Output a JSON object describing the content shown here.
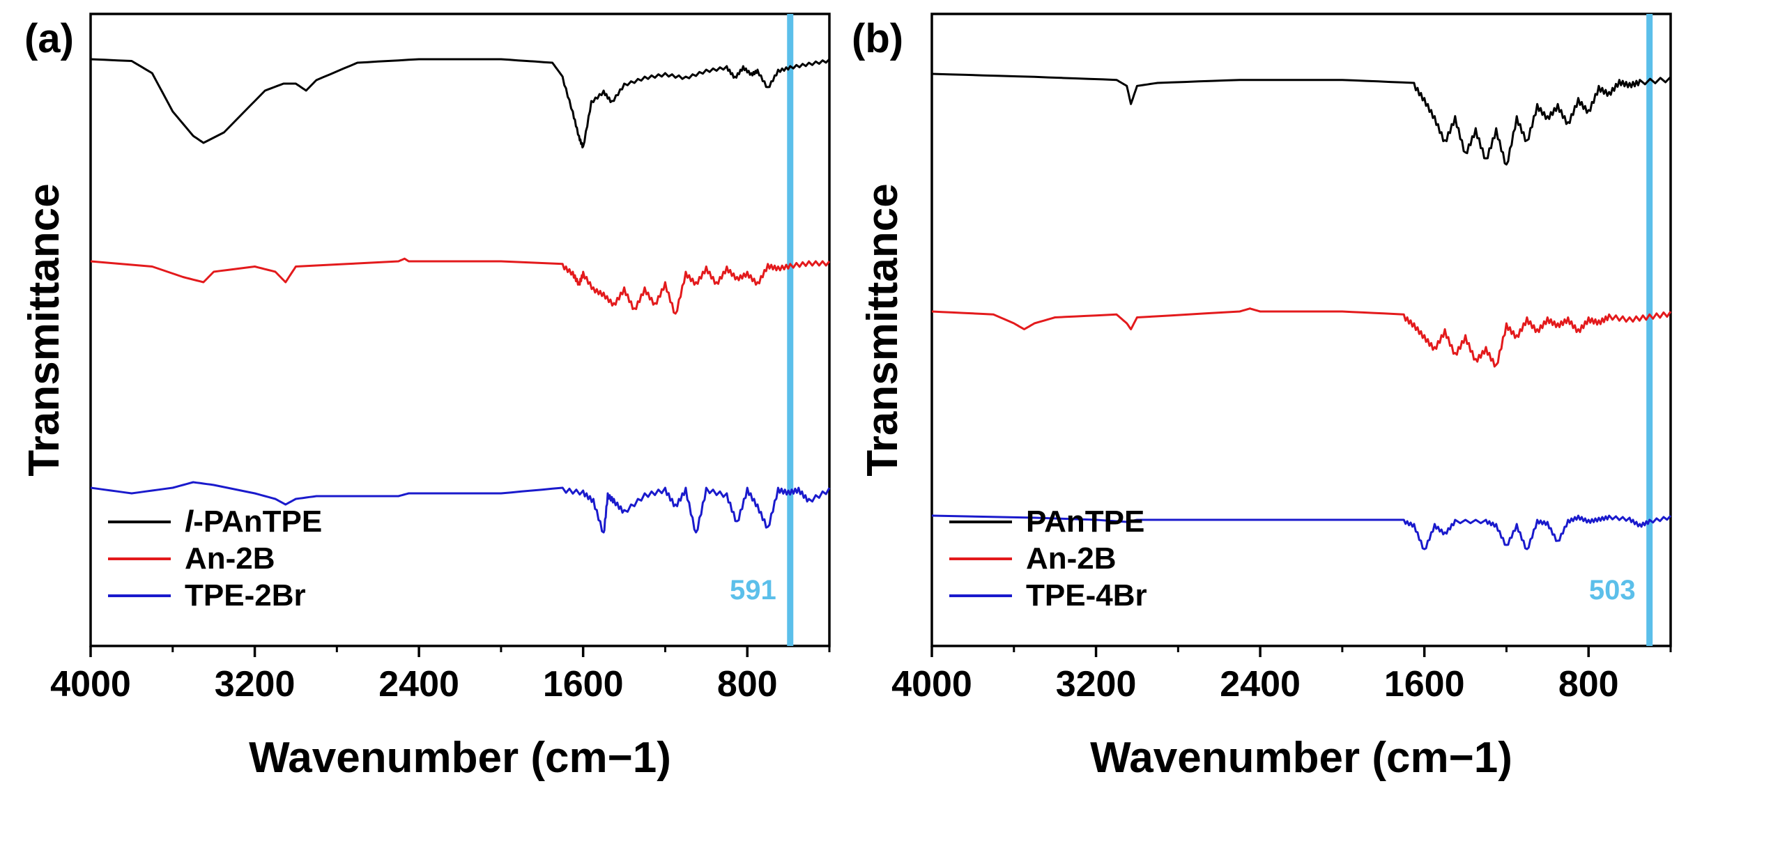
{
  "chart_data": [
    {
      "type": "line",
      "panel_label": "(a)",
      "xlabel": "Wavenumber (cm−1)",
      "ylabel": "Transmittance",
      "xlim": [
        4000,
        400
      ],
      "x_reversed": true,
      "x_ticks": [
        4000,
        3200,
        2400,
        1600,
        800
      ],
      "x_tick_labels": [
        "4000",
        "3200",
        "2400",
        "1600",
        "800"
      ],
      "y_ticks_shown": false,
      "legend_position": "bottom-left",
      "marker_line": {
        "x": 591,
        "label": "591",
        "color": "#5bbfea"
      },
      "series": [
        {
          "name": "l-PAnTPE",
          "legend_prefix": "l",
          "legend_suffix": "-PAnTPE",
          "color": "#000000",
          "points": [
            [
              4000,
              0.97
            ],
            [
              3800,
              0.965
            ],
            [
              3700,
              0.93
            ],
            [
              3600,
              0.82
            ],
            [
              3500,
              0.75
            ],
            [
              3450,
              0.73
            ],
            [
              3350,
              0.76
            ],
            [
              3250,
              0.82
            ],
            [
              3150,
              0.88
            ],
            [
              3060,
              0.9
            ],
            [
              3000,
              0.9
            ],
            [
              2950,
              0.88
            ],
            [
              2900,
              0.91
            ],
            [
              2700,
              0.96
            ],
            [
              2400,
              0.97
            ],
            [
              2000,
              0.97
            ],
            [
              1750,
              0.96
            ],
            [
              1700,
              0.92
            ],
            [
              1650,
              0.82
            ],
            [
              1620,
              0.75
            ],
            [
              1600,
              0.72
            ],
            [
              1560,
              0.85
            ],
            [
              1500,
              0.88
            ],
            [
              1460,
              0.85
            ],
            [
              1400,
              0.9
            ],
            [
              1300,
              0.92
            ],
            [
              1200,
              0.93
            ],
            [
              1100,
              0.92
            ],
            [
              1000,
              0.94
            ],
            [
              900,
              0.95
            ],
            [
              860,
              0.92
            ],
            [
              820,
              0.95
            ],
            [
              780,
              0.93
            ],
            [
              750,
              0.94
            ],
            [
              700,
              0.89
            ],
            [
              650,
              0.94
            ],
            [
              591,
              0.95
            ],
            [
              500,
              0.96
            ],
            [
              400,
              0.97
            ]
          ]
        },
        {
          "name": "An-2B",
          "legend_prefix": "",
          "legend_suffix": "An-2B",
          "color": "#e31a1c",
          "points": [
            [
              4000,
              0.88
            ],
            [
              3700,
              0.87
            ],
            [
              3550,
              0.85
            ],
            [
              3450,
              0.84
            ],
            [
              3400,
              0.86
            ],
            [
              3200,
              0.87
            ],
            [
              3100,
              0.86
            ],
            [
              3050,
              0.84
            ],
            [
              3000,
              0.87
            ],
            [
              2500,
              0.88
            ],
            [
              2470,
              0.885
            ],
            [
              2450,
              0.88
            ],
            [
              2000,
              0.88
            ],
            [
              1700,
              0.875
            ],
            [
              1650,
              0.86
            ],
            [
              1620,
              0.84
            ],
            [
              1600,
              0.86
            ],
            [
              1550,
              0.83
            ],
            [
              1500,
              0.82
            ],
            [
              1450,
              0.8
            ],
            [
              1400,
              0.83
            ],
            [
              1350,
              0.79
            ],
            [
              1300,
              0.83
            ],
            [
              1250,
              0.8
            ],
            [
              1200,
              0.84
            ],
            [
              1150,
              0.78
            ],
            [
              1100,
              0.86
            ],
            [
              1050,
              0.84
            ],
            [
              1000,
              0.87
            ],
            [
              950,
              0.84
            ],
            [
              900,
              0.87
            ],
            [
              850,
              0.85
            ],
            [
              800,
              0.86
            ],
            [
              750,
              0.84
            ],
            [
              700,
              0.875
            ],
            [
              650,
              0.87
            ],
            [
              591,
              0.875
            ],
            [
              500,
              0.88
            ],
            [
              400,
              0.88
            ]
          ]
        },
        {
          "name": "TPE-2Br",
          "legend_prefix": "",
          "legend_suffix": "TPE-2Br",
          "color": "#1a1acc",
          "points": [
            [
              4000,
              0.8
            ],
            [
              3800,
              0.79
            ],
            [
              3600,
              0.8
            ],
            [
              3500,
              0.81
            ],
            [
              3400,
              0.805
            ],
            [
              3200,
              0.79
            ],
            [
              3100,
              0.78
            ],
            [
              3050,
              0.77
            ],
            [
              3000,
              0.78
            ],
            [
              2900,
              0.785
            ],
            [
              2500,
              0.785
            ],
            [
              2450,
              0.79
            ],
            [
              2000,
              0.79
            ],
            [
              1700,
              0.8
            ],
            [
              1600,
              0.795
            ],
            [
              1550,
              0.78
            ],
            [
              1500,
              0.72
            ],
            [
              1480,
              0.79
            ],
            [
              1450,
              0.78
            ],
            [
              1400,
              0.76
            ],
            [
              1300,
              0.79
            ],
            [
              1200,
              0.8
            ],
            [
              1150,
              0.77
            ],
            [
              1100,
              0.8
            ],
            [
              1050,
              0.72
            ],
            [
              1000,
              0.8
            ],
            [
              900,
              0.79
            ],
            [
              850,
              0.74
            ],
            [
              800,
              0.8
            ],
            [
              750,
              0.77
            ],
            [
              700,
              0.73
            ],
            [
              650,
              0.8
            ],
            [
              600,
              0.795
            ],
            [
              550,
              0.8
            ],
            [
              500,
              0.78
            ],
            [
              400,
              0.8
            ]
          ]
        }
      ]
    },
    {
      "type": "line",
      "panel_label": "(b)",
      "xlabel": "Wavenumber (cm−1)",
      "ylabel": "Transmittance",
      "xlim": [
        4000,
        400
      ],
      "x_reversed": true,
      "x_ticks": [
        4000,
        3200,
        2400,
        1600,
        800
      ],
      "x_tick_labels": [
        "4000",
        "3200",
        "2400",
        "1600",
        "800"
      ],
      "y_ticks_shown": false,
      "legend_position": "bottom-left",
      "marker_line": {
        "x": 503,
        "label": "503",
        "color": "#5bbfea"
      },
      "series": [
        {
          "name": "PAnTPE",
          "legend_prefix": "",
          "legend_suffix": "PAnTPE",
          "color": "#000000",
          "points": [
            [
              4000,
              0.97
            ],
            [
              3500,
              0.965
            ],
            [
              3100,
              0.96
            ],
            [
              3050,
              0.95
            ],
            [
              3030,
              0.92
            ],
            [
              3000,
              0.95
            ],
            [
              2900,
              0.955
            ],
            [
              2500,
              0.96
            ],
            [
              2000,
              0.96
            ],
            [
              1650,
              0.955
            ],
            [
              1600,
              0.93
            ],
            [
              1550,
              0.9
            ],
            [
              1500,
              0.86
            ],
            [
              1450,
              0.9
            ],
            [
              1400,
              0.84
            ],
            [
              1350,
              0.88
            ],
            [
              1300,
              0.83
            ],
            [
              1250,
              0.88
            ],
            [
              1200,
              0.82
            ],
            [
              1150,
              0.9
            ],
            [
              1100,
              0.86
            ],
            [
              1050,
              0.92
            ],
            [
              1000,
              0.9
            ],
            [
              950,
              0.92
            ],
            [
              900,
              0.89
            ],
            [
              850,
              0.93
            ],
            [
              800,
              0.91
            ],
            [
              750,
              0.95
            ],
            [
              700,
              0.94
            ],
            [
              650,
              0.96
            ],
            [
              600,
              0.955
            ],
            [
              550,
              0.96
            ],
            [
              400,
              0.965
            ]
          ]
        },
        {
          "name": "An-2B",
          "legend_prefix": "",
          "legend_suffix": "An-2B",
          "color": "#e31a1c",
          "points": [
            [
              4000,
              0.88
            ],
            [
              3700,
              0.875
            ],
            [
              3600,
              0.86
            ],
            [
              3550,
              0.85
            ],
            [
              3500,
              0.86
            ],
            [
              3400,
              0.87
            ],
            [
              3100,
              0.875
            ],
            [
              3050,
              0.86
            ],
            [
              3030,
              0.85
            ],
            [
              3000,
              0.87
            ],
            [
              2500,
              0.88
            ],
            [
              2450,
              0.885
            ],
            [
              2400,
              0.88
            ],
            [
              2000,
              0.88
            ],
            [
              1700,
              0.875
            ],
            [
              1650,
              0.86
            ],
            [
              1600,
              0.84
            ],
            [
              1550,
              0.82
            ],
            [
              1500,
              0.85
            ],
            [
              1450,
              0.81
            ],
            [
              1400,
              0.84
            ],
            [
              1350,
              0.8
            ],
            [
              1300,
              0.82
            ],
            [
              1250,
              0.79
            ],
            [
              1200,
              0.86
            ],
            [
              1150,
              0.84
            ],
            [
              1100,
              0.87
            ],
            [
              1050,
              0.85
            ],
            [
              1000,
              0.87
            ],
            [
              950,
              0.86
            ],
            [
              900,
              0.87
            ],
            [
              850,
              0.85
            ],
            [
              800,
              0.87
            ],
            [
              750,
              0.865
            ],
            [
              700,
              0.875
            ],
            [
              600,
              0.87
            ],
            [
              503,
              0.875
            ],
            [
              400,
              0.88
            ]
          ]
        },
        {
          "name": "TPE-4Br",
          "legend_prefix": "",
          "legend_suffix": "TPE-4Br",
          "color": "#1a1acc",
          "points": [
            [
              4000,
              0.8
            ],
            [
              3500,
              0.795
            ],
            [
              3200,
              0.79
            ],
            [
              3050,
              0.785
            ],
            [
              3000,
              0.79
            ],
            [
              2500,
              0.79
            ],
            [
              2000,
              0.79
            ],
            [
              1700,
              0.79
            ],
            [
              1650,
              0.78
            ],
            [
              1600,
              0.72
            ],
            [
              1550,
              0.78
            ],
            [
              1500,
              0.76
            ],
            [
              1450,
              0.79
            ],
            [
              1300,
              0.79
            ],
            [
              1250,
              0.78
            ],
            [
              1200,
              0.73
            ],
            [
              1150,
              0.78
            ],
            [
              1100,
              0.72
            ],
            [
              1050,
              0.79
            ],
            [
              1000,
              0.785
            ],
            [
              950,
              0.74
            ],
            [
              900,
              0.79
            ],
            [
              850,
              0.8
            ],
            [
              800,
              0.79
            ],
            [
              750,
              0.795
            ],
            [
              700,
              0.8
            ],
            [
              600,
              0.795
            ],
            [
              550,
              0.78
            ],
            [
              503,
              0.79
            ],
            [
              400,
              0.8
            ]
          ]
        }
      ]
    }
  ]
}
